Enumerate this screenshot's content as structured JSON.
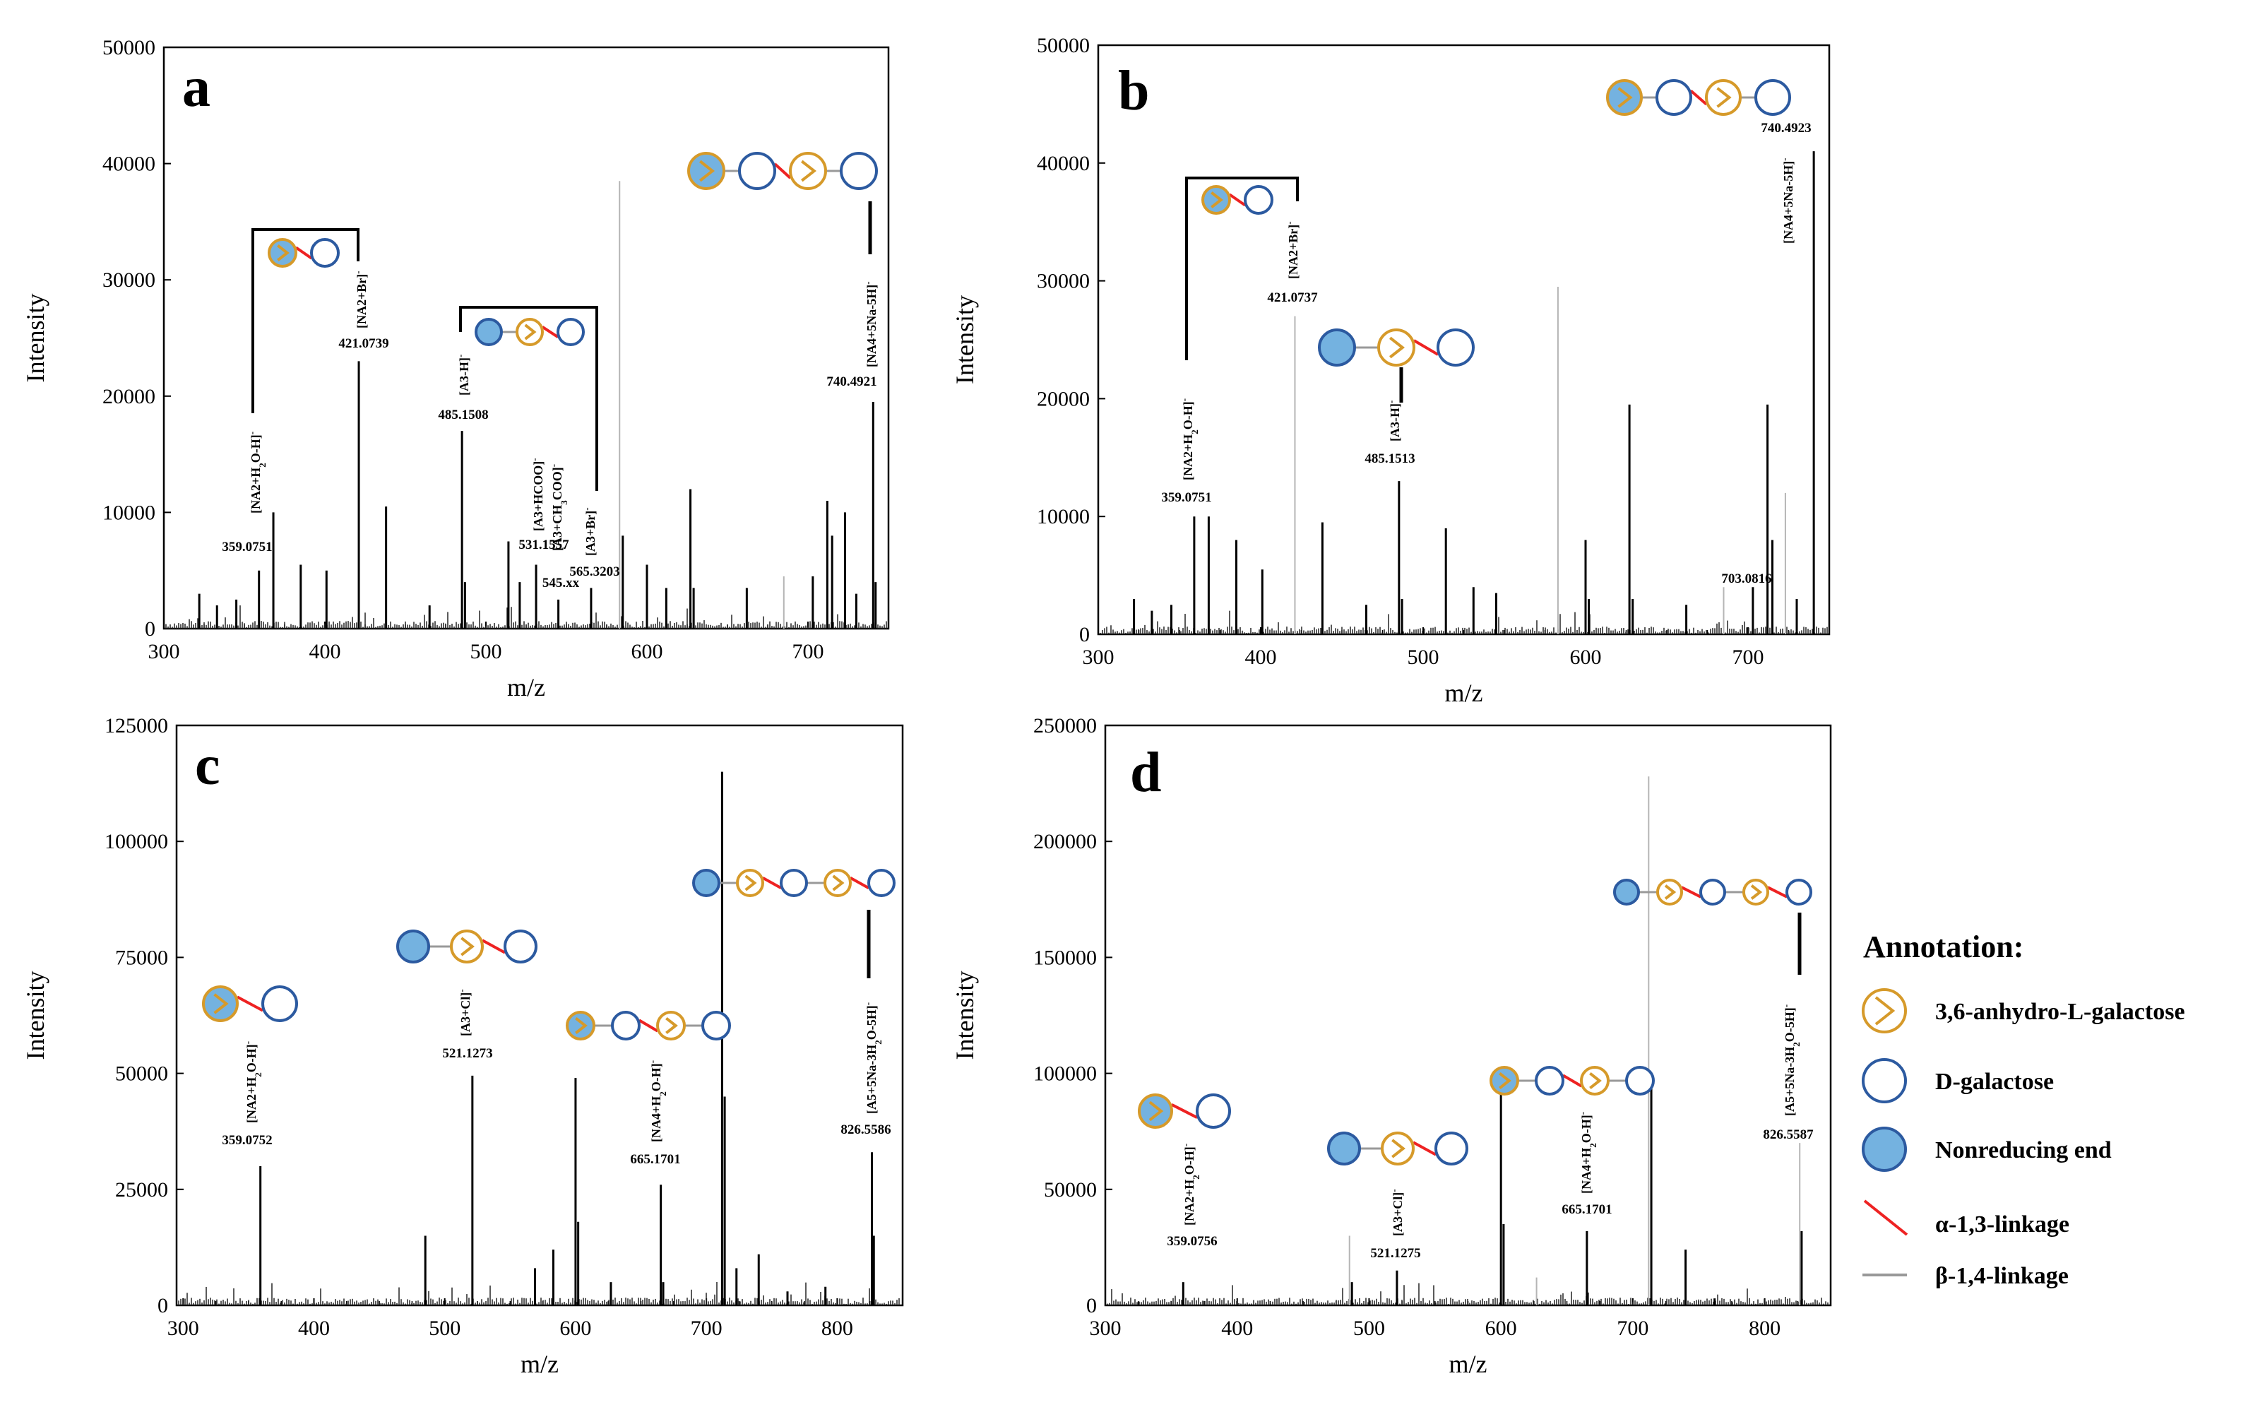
{
  "colors": {
    "ahg": "#d69a2a",
    "gal": "#2c5aa0",
    "nonreducing": "#74b2e0",
    "alpha": "#ee2222",
    "beta": "#999999",
    "spectrum": "#000000",
    "spectrum_light": "#b5b5b5"
  },
  "legend": {
    "title": "Annotation:",
    "items": [
      {
        "label": "3,6-anhydro-L-galactose",
        "icon": "ahg-symbol-icon"
      },
      {
        "label": "D-galactose",
        "icon": "gal-symbol-icon"
      },
      {
        "label": "Nonreducing end",
        "icon": "nonreducing-symbol-icon"
      },
      {
        "label": "α-1,3-linkage",
        "icon": "alpha-linkage-icon"
      },
      {
        "label": "β-1,4-linkage",
        "icon": "beta-linkage-icon"
      }
    ]
  },
  "chart_data": [
    {
      "panel": "a",
      "type": "bar",
      "xlabel": "m/z",
      "ylabel": "Intensity",
      "xlim": [
        300,
        750
      ],
      "ylim": [
        0,
        50000
      ],
      "xticks": [
        300,
        400,
        500,
        600,
        700
      ],
      "yticks": [
        0,
        10000,
        20000,
        30000,
        40000,
        50000
      ],
      "peaks": [
        {
          "mz": 322,
          "i": 3000
        },
        {
          "mz": 333,
          "i": 2000
        },
        {
          "mz": 345,
          "i": 2500
        },
        {
          "mz": 359.08,
          "i": 5000
        },
        {
          "mz": 368,
          "i": 10000
        },
        {
          "mz": 385,
          "i": 5500
        },
        {
          "mz": 401,
          "i": 5000
        },
        {
          "mz": 421.07,
          "i": 23000
        },
        {
          "mz": 438,
          "i": 10500
        },
        {
          "mz": 465,
          "i": 2000
        },
        {
          "mz": 485.15,
          "i": 17000
        },
        {
          "mz": 487,
          "i": 4000
        },
        {
          "mz": 514,
          "i": 7500
        },
        {
          "mz": 521,
          "i": 4000
        },
        {
          "mz": 531.16,
          "i": 5500
        },
        {
          "mz": 545,
          "i": 2500
        },
        {
          "mz": 565.32,
          "i": 3500
        },
        {
          "mz": 583,
          "i": 38500,
          "light": true
        },
        {
          "mz": 585,
          "i": 8000
        },
        {
          "mz": 600,
          "i": 5500
        },
        {
          "mz": 612,
          "i": 3500
        },
        {
          "mz": 627,
          "i": 12000
        },
        {
          "mz": 629,
          "i": 3500
        },
        {
          "mz": 662,
          "i": 3500
        },
        {
          "mz": 685,
          "i": 4500,
          "light": true
        },
        {
          "mz": 703,
          "i": 4500
        },
        {
          "mz": 712,
          "i": 11000
        },
        {
          "mz": 715,
          "i": 8000
        },
        {
          "mz": 723,
          "i": 10000
        },
        {
          "mz": 730,
          "i": 3000
        },
        {
          "mz": 740.49,
          "i": 19500
        },
        {
          "mz": 742,
          "i": 4000
        }
      ],
      "annotations": [
        {
          "mz": 359.0751,
          "label": "[NA2+H2O-H]",
          "mass": "359.0751"
        },
        {
          "mz": 421.0739,
          "label": "[NA2+Br]",
          "mass": "421.0739"
        },
        {
          "mz": 485.1508,
          "label": "[A3-H]",
          "mass": "485.1508"
        },
        {
          "mz": 531.1557,
          "label": "[A3+HCOO]",
          "mass": "531.1557"
        },
        {
          "mz": 545.1,
          "label": "[A3+CH3COO]",
          "mass": "545.xx"
        },
        {
          "mz": 565.3203,
          "label": "[A3+Br]",
          "mass": "565.3203"
        },
        {
          "mz": 740.4921,
          "label": "[NA4+5Na-5H]",
          "mass": "740.4921"
        }
      ]
    },
    {
      "panel": "b",
      "type": "bar",
      "xlabel": "m/z",
      "ylabel": "Intensity",
      "xlim": [
        300,
        750
      ],
      "ylim": [
        0,
        50000
      ],
      "xticks": [
        300,
        400,
        500,
        600,
        700
      ],
      "yticks": [
        0,
        10000,
        20000,
        30000,
        40000,
        50000
      ],
      "peaks": [
        {
          "mz": 322,
          "i": 3000
        },
        {
          "mz": 333,
          "i": 2000
        },
        {
          "mz": 345,
          "i": 2500
        },
        {
          "mz": 359.08,
          "i": 10000
        },
        {
          "mz": 368,
          "i": 10000
        },
        {
          "mz": 385,
          "i": 8000
        },
        {
          "mz": 401,
          "i": 5500
        },
        {
          "mz": 421.07,
          "i": 27000,
          "light": true
        },
        {
          "mz": 438,
          "i": 9500
        },
        {
          "mz": 465,
          "i": 2500
        },
        {
          "mz": 485.15,
          "i": 13000
        },
        {
          "mz": 487,
          "i": 3000
        },
        {
          "mz": 514,
          "i": 9000
        },
        {
          "mz": 531,
          "i": 4000
        },
        {
          "mz": 545,
          "i": 3500
        },
        {
          "mz": 583,
          "i": 29500,
          "light": true
        },
        {
          "mz": 600,
          "i": 8000
        },
        {
          "mz": 602,
          "i": 3000
        },
        {
          "mz": 627,
          "i": 19500
        },
        {
          "mz": 629,
          "i": 3000
        },
        {
          "mz": 662,
          "i": 2500
        },
        {
          "mz": 685,
          "i": 4000,
          "light": true
        },
        {
          "mz": 703,
          "i": 4000
        },
        {
          "mz": 712,
          "i": 19500
        },
        {
          "mz": 715,
          "i": 8000
        },
        {
          "mz": 723,
          "i": 12000,
          "light": true
        },
        {
          "mz": 730,
          "i": 3000
        },
        {
          "mz": 740.49,
          "i": 41000
        }
      ],
      "annotations": [
        {
          "mz": 359.0751,
          "label": "[NA2+H2O-H]",
          "mass": "359.0751"
        },
        {
          "mz": 421.0737,
          "label": "[NA2+Br]",
          "mass": "421.0737"
        },
        {
          "mz": 485.1513,
          "label": "[A3-H]",
          "mass": "485.1513"
        },
        {
          "mz": 703.0816,
          "label": "",
          "mass": "703.0816"
        },
        {
          "mz": 740.4923,
          "label": "[NA4+5Na-5H]",
          "mass": "740.4923"
        }
      ]
    },
    {
      "panel": "c",
      "type": "bar",
      "xlabel": "m/z",
      "ylabel": "Intensity",
      "xlim": [
        295,
        850
      ],
      "ylim": [
        0,
        125000
      ],
      "xticks": [
        300,
        400,
        500,
        600,
        700,
        800
      ],
      "yticks": [
        0,
        25000,
        50000,
        75000,
        100000,
        125000
      ],
      "peaks": [
        {
          "mz": 359.08,
          "i": 30000
        },
        {
          "mz": 485.15,
          "i": 15000
        },
        {
          "mz": 521.13,
          "i": 49500
        },
        {
          "mz": 569,
          "i": 8000
        },
        {
          "mz": 583,
          "i": 12000
        },
        {
          "mz": 600,
          "i": 49000
        },
        {
          "mz": 602,
          "i": 18000
        },
        {
          "mz": 627,
          "i": 5000
        },
        {
          "mz": 665.17,
          "i": 26000
        },
        {
          "mz": 667,
          "i": 5000
        },
        {
          "mz": 712,
          "i": 115000
        },
        {
          "mz": 714,
          "i": 45000
        },
        {
          "mz": 723,
          "i": 8000
        },
        {
          "mz": 740,
          "i": 11000
        },
        {
          "mz": 762,
          "i": 3000
        },
        {
          "mz": 791,
          "i": 4000
        },
        {
          "mz": 826.56,
          "i": 33000
        },
        {
          "mz": 828,
          "i": 15000
        }
      ],
      "annotations": [
        {
          "mz": 359.0752,
          "label": "[NA2+H2O-H]",
          "mass": "359.0752"
        },
        {
          "mz": 521.1273,
          "label": "[A3+Cl]",
          "mass": "521.1273"
        },
        {
          "mz": 665.1701,
          "label": "[NA4+H2O-H]",
          "mass": "665.1701"
        },
        {
          "mz": 826.5586,
          "label": "[A5+5Na-3H2O-5H]",
          "mass": "826.5586"
        }
      ]
    },
    {
      "panel": "d",
      "type": "bar",
      "xlabel": "m/z",
      "ylabel": "Intensity",
      "xlim": [
        300,
        850
      ],
      "ylim": [
        0,
        250000
      ],
      "xticks": [
        300,
        400,
        500,
        600,
        700,
        800
      ],
      "yticks": [
        0,
        50000,
        100000,
        150000,
        200000,
        250000
      ],
      "peaks": [
        {
          "mz": 359.08,
          "i": 10000
        },
        {
          "mz": 485.15,
          "i": 30000,
          "light": true
        },
        {
          "mz": 487,
          "i": 10000
        },
        {
          "mz": 521.13,
          "i": 15000
        },
        {
          "mz": 600,
          "i": 95000
        },
        {
          "mz": 602,
          "i": 35000
        },
        {
          "mz": 627,
          "i": 12000,
          "light": true
        },
        {
          "mz": 665.17,
          "i": 32000
        },
        {
          "mz": 712,
          "i": 228000,
          "light": true
        },
        {
          "mz": 714,
          "i": 95000
        },
        {
          "mz": 740,
          "i": 24000
        },
        {
          "mz": 762,
          "i": 3000
        },
        {
          "mz": 826.56,
          "i": 70000,
          "light": true
        },
        {
          "mz": 828,
          "i": 32000
        }
      ],
      "annotations": [
        {
          "mz": 359.0756,
          "label": "[NA2+H2O-H]",
          "mass": "359.0756"
        },
        {
          "mz": 521.1275,
          "label": "[A3+Cl]",
          "mass": "521.1275"
        },
        {
          "mz": 665.1701,
          "label": "[NA4+H2O-H]",
          "mass": "665.1701"
        },
        {
          "mz": 826.5587,
          "label": "[A5+5Na-3H2O-5H]",
          "mass": "826.5587"
        }
      ]
    }
  ]
}
